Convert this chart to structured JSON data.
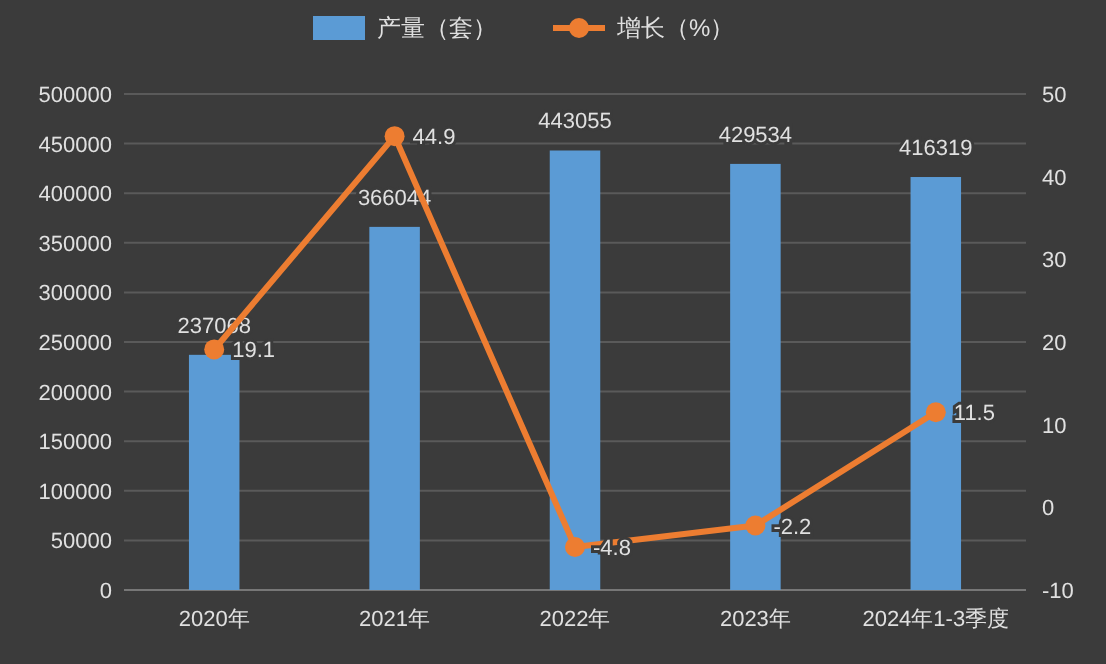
{
  "chart_data": {
    "type": "bar",
    "categories": [
      "2020年",
      "2021年",
      "2022年",
      "2023年",
      "2024年1-3季度"
    ],
    "series": [
      {
        "name": "产量（套）",
        "color": "#5b9bd5",
        "values": [
          237068,
          366044,
          443055,
          429534,
          416319
        ]
      },
      {
        "name": "增长（%）",
        "type": "line",
        "axis": "y2",
        "color": "#ed7d31",
        "values": [
          19.1,
          44.9,
          -4.8,
          -2.2,
          11.5
        ]
      }
    ],
    "ylim": [
      0,
      500000
    ],
    "yticks": [
      0,
      50000,
      100000,
      150000,
      200000,
      250000,
      300000,
      350000,
      400000,
      450000,
      500000
    ],
    "y2lim": [
      -10,
      50
    ],
    "y2ticks": [
      -10,
      0,
      10,
      20,
      30,
      40,
      50
    ],
    "grid": "y",
    "legend": "top",
    "marker": "circle",
    "data_labels": true
  }
}
